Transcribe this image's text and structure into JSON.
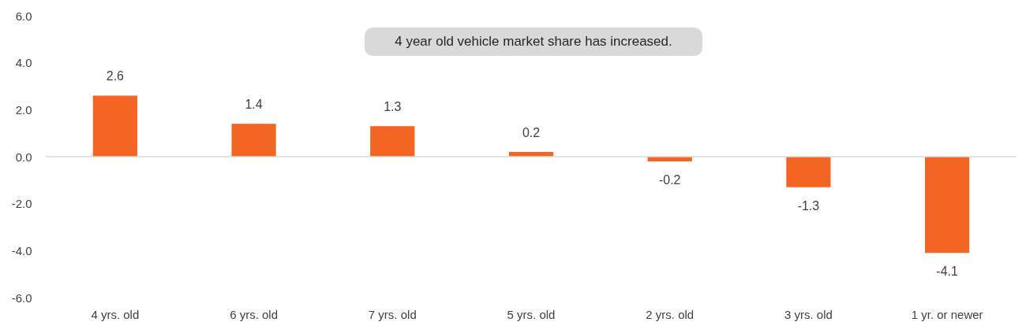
{
  "chart_data": {
    "type": "bar",
    "categories": [
      "4 yrs. old",
      "6 yrs. old",
      "7 yrs. old",
      "5 yrs. old",
      "2 yrs. old",
      "3 yrs. old",
      "1 yr. or newer"
    ],
    "values": [
      2.6,
      1.4,
      1.3,
      0.2,
      -0.2,
      -1.3,
      -4.1
    ],
    "color": "#f26522",
    "ylim": [
      -6,
      6
    ],
    "yticks": [
      {
        "value": -6,
        "label": "-6.0"
      },
      {
        "value": -4,
        "label": "-4.0"
      },
      {
        "value": -2,
        "label": "-2.0"
      },
      {
        "value": 0,
        "label": "0.0"
      },
      {
        "value": 2,
        "label": "2.0"
      },
      {
        "value": 4,
        "label": "4.0"
      },
      {
        "value": 6,
        "label": "6.0"
      }
    ],
    "data_labels": true,
    "ref_lines": [
      {
        "axis": "y",
        "value": 0,
        "color": "#d9d9d9"
      }
    ],
    "annotations": [
      "4 year old vehicle market share has increased."
    ]
  }
}
